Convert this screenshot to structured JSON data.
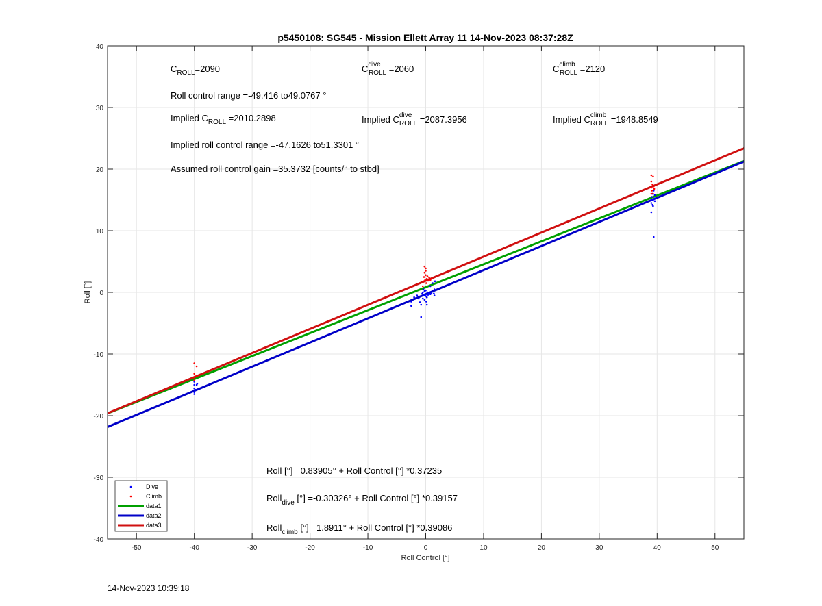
{
  "chart_data": {
    "type": "scatter",
    "title": "p5450108: SG545 - Mission Ellett Array 11 14-Nov-2023 08:37:28Z",
    "xlabel": "Roll Control [°]",
    "ylabel": "Roll [°]",
    "xlim": [
      -55,
      55
    ],
    "ylim": [
      -40,
      40
    ],
    "xticks": [
      -50,
      -40,
      -30,
      -20,
      -10,
      0,
      10,
      20,
      30,
      40,
      50
    ],
    "yticks": [
      -40,
      -30,
      -20,
      -10,
      0,
      10,
      20,
      30,
      40
    ],
    "grid": true,
    "legend_position": "bottom-left",
    "scatter_series": [
      {
        "name": "Dive",
        "color": "#0000ff",
        "points": [
          [
            -40,
            -14.5
          ],
          [
            -40,
            -15.0
          ],
          [
            -40,
            -15.6
          ],
          [
            -40,
            -16.2
          ],
          [
            -40,
            -16.5
          ],
          [
            -39.8,
            -15.8
          ],
          [
            -39.6,
            -15.0
          ],
          [
            -39.5,
            -14.8
          ],
          [
            -2.5,
            -1.5
          ],
          [
            -2.5,
            -2.2
          ],
          [
            -2.0,
            -0.8
          ],
          [
            -1.5,
            -0.5
          ],
          [
            -1.2,
            -1.0
          ],
          [
            -1.0,
            -1.6
          ],
          [
            -0.8,
            -4.0
          ],
          [
            -0.8,
            -2.0
          ],
          [
            -0.6,
            -0.2
          ],
          [
            -0.5,
            0.0
          ],
          [
            -0.5,
            -1.0
          ],
          [
            -0.4,
            0.5
          ],
          [
            -0.3,
            -0.5
          ],
          [
            -0.2,
            -1.2
          ],
          [
            -0.2,
            0.2
          ],
          [
            -0.1,
            -0.3
          ],
          [
            0.0,
            -0.6
          ],
          [
            0.0,
            0.3
          ],
          [
            0.1,
            -1.5
          ],
          [
            0.2,
            -0.8
          ],
          [
            0.2,
            -2.0
          ],
          [
            0.3,
            0.0
          ],
          [
            0.4,
            -0.4
          ],
          [
            0.5,
            -0.2
          ],
          [
            0.8,
            1.0
          ],
          [
            0.8,
            -0.3
          ],
          [
            1.0,
            -0.1
          ],
          [
            1.2,
            1.5
          ],
          [
            1.4,
            -0.2
          ],
          [
            1.5,
            0.5
          ],
          [
            1.5,
            -0.5
          ],
          [
            1.6,
            1.8
          ],
          [
            39.0,
            15.0
          ],
          [
            39.0,
            13.0
          ],
          [
            39.0,
            14.5
          ],
          [
            39.1,
            15.5
          ],
          [
            39.2,
            14.2
          ],
          [
            39.2,
            16.0
          ],
          [
            39.3,
            14.0
          ],
          [
            39.3,
            15.0
          ],
          [
            39.4,
            9.0
          ],
          [
            39.4,
            16.5
          ],
          [
            39.5,
            15.2
          ],
          [
            39.6,
            14.8
          ],
          [
            39.6,
            15.8
          ]
        ]
      },
      {
        "name": "Climb",
        "color": "#ff0000",
        "points": [
          [
            -40,
            -11.5
          ],
          [
            -40,
            -13.2
          ],
          [
            -40,
            -13.8
          ],
          [
            -40,
            -14.3
          ],
          [
            -39.6,
            -12.0
          ],
          [
            -39.6,
            -13.5
          ],
          [
            -0.5,
            1.0
          ],
          [
            -0.4,
            1.8
          ],
          [
            -0.3,
            2.5
          ],
          [
            -0.2,
            3.2
          ],
          [
            -0.2,
            4.2
          ],
          [
            -0.1,
            2.0
          ],
          [
            0.0,
            2.8
          ],
          [
            0.0,
            3.5
          ],
          [
            0.0,
            3.9
          ],
          [
            0.1,
            1.5
          ],
          [
            0.2,
            2.2
          ],
          [
            0.3,
            2.6
          ],
          [
            0.4,
            1.9
          ],
          [
            0.6,
            2.4
          ],
          [
            0.8,
            2.0
          ],
          [
            1.0,
            2.2
          ],
          [
            39.0,
            16.0
          ],
          [
            39.0,
            17.0
          ],
          [
            39.0,
            18.0
          ],
          [
            39.0,
            19.0
          ],
          [
            39.1,
            16.5
          ],
          [
            39.2,
            17.5
          ],
          [
            39.3,
            18.8
          ],
          [
            39.3,
            16.0
          ],
          [
            39.4,
            17.2
          ],
          [
            39.5,
            16.8
          ]
        ]
      }
    ],
    "line_series": [
      {
        "name": "data1",
        "color": "#00a000",
        "intercept": 0.83905,
        "slope": 0.37235
      },
      {
        "name": "data2",
        "color": "#0000c8",
        "intercept": -0.30326,
        "slope": 0.39157
      },
      {
        "name": "data3",
        "color": "#d01010",
        "intercept": 1.8911,
        "slope": 0.39086
      }
    ]
  },
  "annotations": {
    "c_roll": {
      "base": "C",
      "sub": "ROLL",
      "value": "=2090"
    },
    "c_roll_dive": {
      "base": "C",
      "sup": "dive",
      "sub": "ROLL",
      "value": " =2060"
    },
    "c_roll_climb": {
      "base": "C",
      "sup": "climb",
      "sub": "ROLL",
      "value": " =2120"
    },
    "roll_range": "Roll control range =-49.416 to49.0767 °",
    "implied_c_roll": {
      "prefix": "Implied C",
      "sub": "ROLL",
      "value": " =2010.2898"
    },
    "implied_c_roll_dive": {
      "prefix": "Implied C",
      "sup": "dive",
      "sub": "ROLL",
      "value": " =2087.3956"
    },
    "implied_c_roll_climb": {
      "prefix": "Implied C",
      "sup": "climb",
      "sub": "ROLL",
      "value": " =1948.8549"
    },
    "implied_range": "Implied roll control range =-47.1626 to51.3301 °",
    "gain": "Assumed roll control gain =35.3732 [counts/° to stbd]",
    "fit_all": "Roll [°] =0.83905° + Roll Control [°] *0.37235",
    "fit_dive": {
      "prefix": "Roll",
      "sub": "dive",
      "rest": " [°] =-0.30326° + Roll Control [°] *0.39157"
    },
    "fit_climb": {
      "prefix": "Roll",
      "sub": "climb",
      "rest": " [°] =1.8911° + Roll Control [°] *0.39086"
    }
  },
  "footer": {
    "timestamp": "14-Nov-2023 10:39:18"
  }
}
